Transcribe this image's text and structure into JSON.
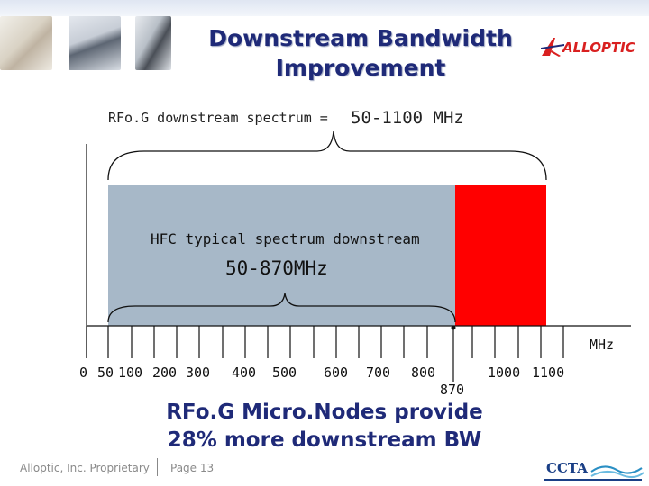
{
  "slide": {
    "title_line1": "Downstream Bandwidth",
    "title_line2": "Improvement",
    "spectrum_label": "RFo.G downstream spectrum =",
    "spectrum_range": "50-1100 MHz",
    "hfc_label": "HFC typical spectrum downstream",
    "hfc_range": "50-870MHz",
    "axis_unit": "MHz",
    "axis_ticks": [
      "0",
      "50",
      "100",
      "200",
      "300",
      "400",
      "500",
      "600",
      "700",
      "800",
      "1000",
      "1100"
    ],
    "marker_870": "870",
    "conclusion_line1": "RFo.G Micro.Nodes provide",
    "conclusion_line2": "28% more downstream BW"
  },
  "logo": {
    "text": "ALLOPTIC"
  },
  "footer": {
    "company": "Alloptic, Inc. Proprietary",
    "page": "Page 13",
    "ccta_logo": "CCTA"
  },
  "colors": {
    "hfc_band": "#a7b8c8",
    "extra_band": "#ff0000",
    "title": "#1f2a78",
    "logo_red": "#d92020"
  }
}
